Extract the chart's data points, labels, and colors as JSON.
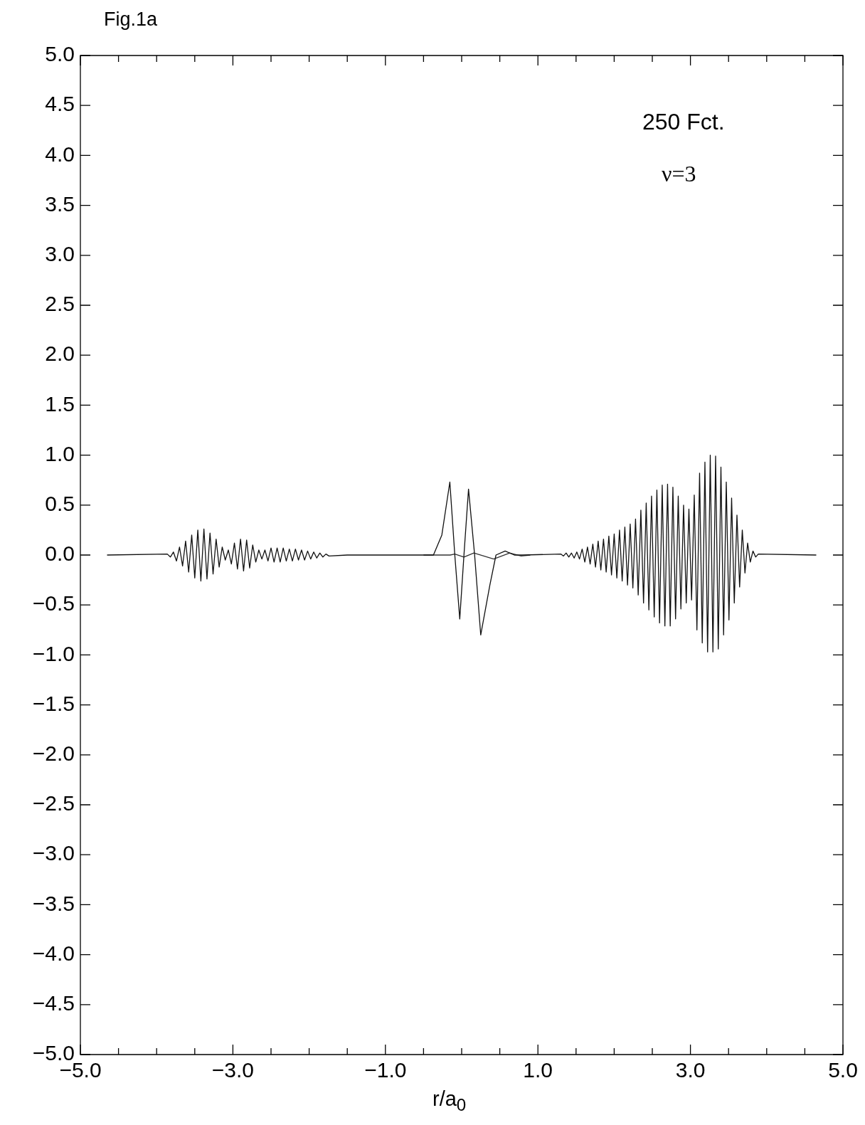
{
  "chart_data": {
    "type": "line",
    "title": "Fig.1a",
    "xlabel": "r/a$_{0}$",
    "annotations": [
      "250 Fct.",
      "ν=3"
    ],
    "xlim": [
      -5,
      5
    ],
    "ylim": [
      -5,
      5
    ],
    "xticks": [
      {
        "value": -5,
        "label": "−5.0"
      },
      {
        "value": -4.5,
        "label": null
      },
      {
        "value": -4,
        "label": null
      },
      {
        "value": -3.5,
        "label": null
      },
      {
        "value": -3,
        "label": "−3.0"
      },
      {
        "value": -2.5,
        "label": null
      },
      {
        "value": -2,
        "label": null
      },
      {
        "value": -1.5,
        "label": null
      },
      {
        "value": -1,
        "label": "−1.0"
      },
      {
        "value": -0.5,
        "label": null
      },
      {
        "value": 0,
        "label": null
      },
      {
        "value": 0.5,
        "label": null
      },
      {
        "value": 1,
        "label": "1.0"
      },
      {
        "value": 1.5,
        "label": null
      },
      {
        "value": 2,
        "label": null
      },
      {
        "value": 2.5,
        "label": null
      },
      {
        "value": 3,
        "label": "3.0"
      },
      {
        "value": 3.5,
        "label": null
      },
      {
        "value": 4,
        "label": null
      },
      {
        "value": 4.5,
        "label": null
      },
      {
        "value": 5,
        "label": "5.0"
      }
    ],
    "yticks": [
      {
        "value": -5,
        "label": "−5.0"
      },
      {
        "value": -4.5,
        "label": "−4.5"
      },
      {
        "value": -4,
        "label": "−4.0"
      },
      {
        "value": -3.5,
        "label": "−3.5"
      },
      {
        "value": -3,
        "label": "−3.0"
      },
      {
        "value": -2.5,
        "label": "−2.5"
      },
      {
        "value": -2,
        "label": "−2.0"
      },
      {
        "value": -1.5,
        "label": "−1.5"
      },
      {
        "value": -1,
        "label": "−1.0"
      },
      {
        "value": -0.5,
        "label": "−0.5"
      },
      {
        "value": 0,
        "label": "0.0"
      },
      {
        "value": 0.5,
        "label": "0.5"
      },
      {
        "value": 1,
        "label": "1.0"
      },
      {
        "value": 1.5,
        "label": "1.5"
      },
      {
        "value": 2,
        "label": "2.0"
      },
      {
        "value": 2.5,
        "label": "2.5"
      },
      {
        "value": 3,
        "label": "3.0"
      },
      {
        "value": 3.5,
        "label": "3.5"
      },
      {
        "value": 4,
        "label": "4.0"
      },
      {
        "value": 4.5,
        "label": "4.5"
      },
      {
        "value": 5,
        "label": "5.0"
      }
    ],
    "grid": false,
    "legend": false,
    "marker": "none",
    "line_style": "solid",
    "series": [
      {
        "color": "#111111",
        "x": [
          -4.65,
          -3.86,
          -3.82,
          -3.78,
          -3.74,
          -3.7,
          -3.66,
          -3.62,
          -3.58,
          -3.54,
          -3.5,
          -3.46,
          -3.42,
          -3.38,
          -3.34,
          -3.3,
          -3.26,
          -3.22,
          -3.18,
          -3.14,
          -3.1,
          -3.06,
          -3.02,
          -2.98,
          -2.94,
          -2.9,
          -2.86,
          -2.82,
          -2.78,
          -2.74,
          -2.7,
          -2.66,
          -2.62,
          -2.58,
          -2.54,
          -2.5,
          -2.46,
          -2.42,
          -2.38,
          -2.34,
          -2.3,
          -2.26,
          -2.22,
          -2.18,
          -2.14,
          -2.1,
          -2.06,
          -2.02,
          -1.98,
          -1.94,
          -1.9,
          -1.86,
          -1.82,
          -1.78,
          -1.74,
          -1.5,
          -0.37,
          -0.26,
          -0.155,
          -0.09,
          -0.025,
          0.03,
          0.09,
          0.17,
          0.25,
          0.37,
          0.45,
          0.57,
          0.69,
          0.8,
          1.3,
          1.335,
          1.37,
          1.405,
          1.44,
          1.475,
          1.51,
          1.545,
          1.58,
          1.615,
          1.65,
          1.685,
          1.72,
          1.755,
          1.79,
          1.825,
          1.86,
          1.895,
          1.93,
          1.965,
          2.0,
          2.035,
          2.07,
          2.105,
          2.14,
          2.175,
          2.21,
          2.245,
          2.28,
          2.315,
          2.35,
          2.385,
          2.42,
          2.455,
          2.49,
          2.525,
          2.56,
          2.595,
          2.63,
          2.665,
          2.7,
          2.735,
          2.77,
          2.805,
          2.84,
          2.875,
          2.91,
          2.945,
          2.98,
          3.015,
          3.05,
          3.085,
          3.12,
          3.155,
          3.19,
          3.225,
          3.26,
          3.295,
          3.33,
          3.365,
          3.4,
          3.435,
          3.47,
          3.505,
          3.54,
          3.575,
          3.61,
          3.645,
          3.68,
          3.715,
          3.75,
          3.785,
          3.82,
          3.855,
          3.89,
          4.65
        ],
        "values": [
          0,
          0.01,
          -0.02,
          0.03,
          -0.06,
          0.08,
          -0.11,
          0.14,
          -0.17,
          0.2,
          -0.23,
          0.25,
          -0.26,
          0.26,
          -0.24,
          0.22,
          -0.19,
          0.16,
          -0.12,
          0.08,
          -0.05,
          0.05,
          -0.09,
          0.12,
          -0.14,
          0.16,
          -0.16,
          0.15,
          -0.13,
          0.1,
          -0.07,
          0.05,
          -0.04,
          0.05,
          -0.06,
          0.07,
          -0.07,
          0.07,
          -0.07,
          0.07,
          -0.06,
          0.06,
          -0.06,
          0.06,
          -0.05,
          0.05,
          -0.05,
          0.04,
          -0.04,
          0.03,
          -0.03,
          0.02,
          -0.02,
          0.01,
          -0.01,
          0,
          0,
          0.2,
          0.73,
          0,
          -0.64,
          0,
          0.66,
          0,
          -0.8,
          -0.3,
          0,
          0.04,
          0,
          0,
          0.01,
          -0.01,
          0.02,
          -0.02,
          0.02,
          -0.03,
          0.03,
          -0.04,
          0.06,
          -0.07,
          0.08,
          -0.09,
          0.11,
          -0.12,
          0.14,
          -0.15,
          0.16,
          -0.17,
          0.19,
          -0.2,
          0.21,
          -0.23,
          0.25,
          -0.26,
          0.28,
          -0.3,
          0.31,
          -0.33,
          0.36,
          -0.4,
          0.45,
          -0.48,
          0.52,
          -0.55,
          0.59,
          -0.62,
          0.65,
          -0.68,
          0.7,
          -0.71,
          0.71,
          -0.71,
          0.68,
          -0.64,
          0.59,
          -0.54,
          0.5,
          -0.48,
          0.46,
          -0.45,
          0.6,
          -0.75,
          0.82,
          -0.88,
          0.93,
          -0.97,
          1.0,
          -0.97,
          0.99,
          -0.94,
          0.88,
          -0.8,
          0.73,
          -0.65,
          0.57,
          -0.48,
          0.4,
          -0.32,
          0.25,
          -0.18,
          0.12,
          -0.07,
          0.04,
          -0.02,
          0.01,
          0
        ]
      },
      {
        "color": "#333333",
        "x": [
          -0.5,
          -0.15,
          -0.09,
          0.03,
          0.16,
          0.42,
          0.63,
          0.78,
          0.9
        ],
        "values": [
          0,
          0,
          0.01,
          -0.02,
          0.02,
          -0.04,
          0.02,
          -0.01,
          0
        ]
      }
    ]
  }
}
